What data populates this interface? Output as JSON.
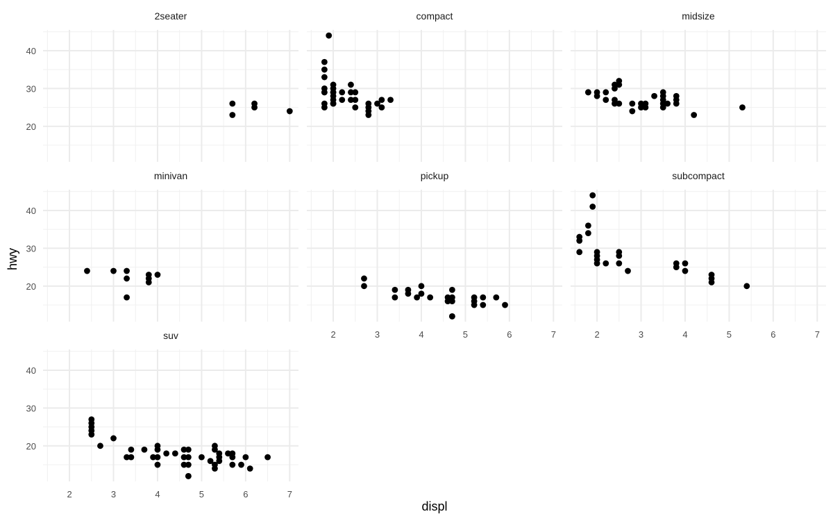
{
  "chart_data": {
    "type": "scatter",
    "facet_layout": "wrap",
    "xlabel": "displ",
    "ylabel": "hwy",
    "xlim": [
      1.4,
      7.2
    ],
    "ylim": [
      10.6,
      45.5
    ],
    "x_ticks": [
      2,
      3,
      4,
      5,
      6,
      7
    ],
    "y_ticks": [
      20,
      30,
      40
    ],
    "grid": true,
    "point_color": "#000000",
    "panel_grid_color": "#ebebeb",
    "panels": [
      {
        "name": "2seater",
        "points": [
          [
            5.7,
            26
          ],
          [
            5.7,
            23
          ],
          [
            6.2,
            26
          ],
          [
            6.2,
            25
          ],
          [
            7.0,
            24
          ]
        ]
      },
      {
        "name": "compact",
        "points": [
          [
            1.8,
            29
          ],
          [
            1.8,
            29
          ],
          [
            1.8,
            30
          ],
          [
            1.8,
            33
          ],
          [
            1.8,
            35
          ],
          [
            1.8,
            37
          ],
          [
            1.8,
            26
          ],
          [
            1.8,
            25
          ],
          [
            1.9,
            44
          ],
          [
            2.0,
            31
          ],
          [
            2.0,
            30
          ],
          [
            2.0,
            29
          ],
          [
            2.0,
            28
          ],
          [
            2.0,
            27
          ],
          [
            2.0,
            26
          ],
          [
            2.0,
            26
          ],
          [
            2.0,
            29
          ],
          [
            2.2,
            29
          ],
          [
            2.2,
            27
          ],
          [
            2.4,
            31
          ],
          [
            2.4,
            29
          ],
          [
            2.4,
            27
          ],
          [
            2.5,
            29
          ],
          [
            2.5,
            27
          ],
          [
            2.5,
            25
          ],
          [
            2.8,
            26
          ],
          [
            2.8,
            25
          ],
          [
            2.8,
            24
          ],
          [
            2.8,
            23
          ],
          [
            3.0,
            26
          ],
          [
            3.1,
            27
          ],
          [
            3.1,
            25
          ],
          [
            3.3,
            27
          ]
        ]
      },
      {
        "name": "midsize",
        "points": [
          [
            1.8,
            29
          ],
          [
            1.8,
            29
          ],
          [
            2.0,
            29
          ],
          [
            2.0,
            28
          ],
          [
            2.2,
            29
          ],
          [
            2.2,
            27
          ],
          [
            2.4,
            31
          ],
          [
            2.4,
            30
          ],
          [
            2.4,
            27
          ],
          [
            2.4,
            26
          ],
          [
            2.5,
            32
          ],
          [
            2.5,
            31
          ],
          [
            2.5,
            26
          ],
          [
            2.8,
            26
          ],
          [
            2.8,
            24
          ],
          [
            3.0,
            26
          ],
          [
            3.0,
            25
          ],
          [
            3.1,
            26
          ],
          [
            3.1,
            25
          ],
          [
            3.3,
            28
          ],
          [
            3.5,
            29
          ],
          [
            3.5,
            28
          ],
          [
            3.5,
            27
          ],
          [
            3.5,
            26
          ],
          [
            3.5,
            25
          ],
          [
            3.6,
            26
          ],
          [
            3.8,
            28
          ],
          [
            3.8,
            27
          ],
          [
            3.8,
            26
          ],
          [
            4.2,
            23
          ],
          [
            5.3,
            25
          ]
        ]
      },
      {
        "name": "minivan",
        "points": [
          [
            2.4,
            24
          ],
          [
            3.0,
            24
          ],
          [
            3.3,
            24
          ],
          [
            3.3,
            22
          ],
          [
            3.3,
            17
          ],
          [
            3.8,
            23
          ],
          [
            3.8,
            22
          ],
          [
            3.8,
            21
          ],
          [
            4.0,
            23
          ]
        ]
      },
      {
        "name": "pickup",
        "points": [
          [
            2.7,
            22
          ],
          [
            2.7,
            20
          ],
          [
            3.4,
            19
          ],
          [
            3.4,
            17
          ],
          [
            3.7,
            19
          ],
          [
            3.7,
            18
          ],
          [
            3.9,
            17
          ],
          [
            4.0,
            20
          ],
          [
            4.0,
            18
          ],
          [
            4.2,
            17
          ],
          [
            4.6,
            17
          ],
          [
            4.6,
            16
          ],
          [
            4.7,
            19
          ],
          [
            4.7,
            17
          ],
          [
            4.7,
            16
          ],
          [
            4.7,
            12
          ],
          [
            4.7,
            12
          ],
          [
            5.2,
            17
          ],
          [
            5.2,
            16
          ],
          [
            5.2,
            15
          ],
          [
            5.4,
            17
          ],
          [
            5.4,
            15
          ],
          [
            5.7,
            17
          ],
          [
            5.9,
            15
          ]
        ]
      },
      {
        "name": "subcompact",
        "points": [
          [
            1.6,
            33
          ],
          [
            1.6,
            32
          ],
          [
            1.6,
            29
          ],
          [
            1.8,
            36
          ],
          [
            1.8,
            34
          ],
          [
            1.9,
            44
          ],
          [
            1.9,
            41
          ],
          [
            2.0,
            29
          ],
          [
            2.0,
            28
          ],
          [
            2.0,
            27
          ],
          [
            2.0,
            26
          ],
          [
            2.2,
            26
          ],
          [
            2.5,
            29
          ],
          [
            2.5,
            28
          ],
          [
            2.5,
            26
          ],
          [
            2.7,
            24
          ],
          [
            3.8,
            26
          ],
          [
            3.8,
            25
          ],
          [
            4.0,
            26
          ],
          [
            4.0,
            24
          ],
          [
            4.6,
            23
          ],
          [
            4.6,
            22
          ],
          [
            4.6,
            21
          ],
          [
            5.4,
            20
          ]
        ]
      },
      {
        "name": "suv",
        "points": [
          [
            2.5,
            27
          ],
          [
            2.5,
            26
          ],
          [
            2.5,
            25
          ],
          [
            2.5,
            24
          ],
          [
            2.5,
            23
          ],
          [
            2.7,
            20
          ],
          [
            3.0,
            22
          ],
          [
            3.3,
            17
          ],
          [
            3.4,
            19
          ],
          [
            3.4,
            17
          ],
          [
            3.7,
            19
          ],
          [
            3.9,
            17
          ],
          [
            4.0,
            20
          ],
          [
            4.0,
            19
          ],
          [
            4.0,
            17
          ],
          [
            4.0,
            15
          ],
          [
            4.2,
            18
          ],
          [
            4.4,
            18
          ],
          [
            4.6,
            19
          ],
          [
            4.6,
            17
          ],
          [
            4.6,
            15
          ],
          [
            4.7,
            19
          ],
          [
            4.7,
            17
          ],
          [
            4.7,
            15
          ],
          [
            4.7,
            12
          ],
          [
            4.7,
            12
          ],
          [
            5.0,
            17
          ],
          [
            5.2,
            16
          ],
          [
            5.3,
            20
          ],
          [
            5.3,
            19
          ],
          [
            5.3,
            15
          ],
          [
            5.3,
            14
          ],
          [
            5.4,
            18
          ],
          [
            5.4,
            17
          ],
          [
            5.4,
            16
          ],
          [
            5.6,
            18
          ],
          [
            5.7,
            18
          ],
          [
            5.7,
            17
          ],
          [
            5.7,
            15
          ],
          [
            5.9,
            15
          ],
          [
            6.0,
            17
          ],
          [
            6.1,
            14
          ],
          [
            6.5,
            17
          ]
        ]
      }
    ]
  }
}
